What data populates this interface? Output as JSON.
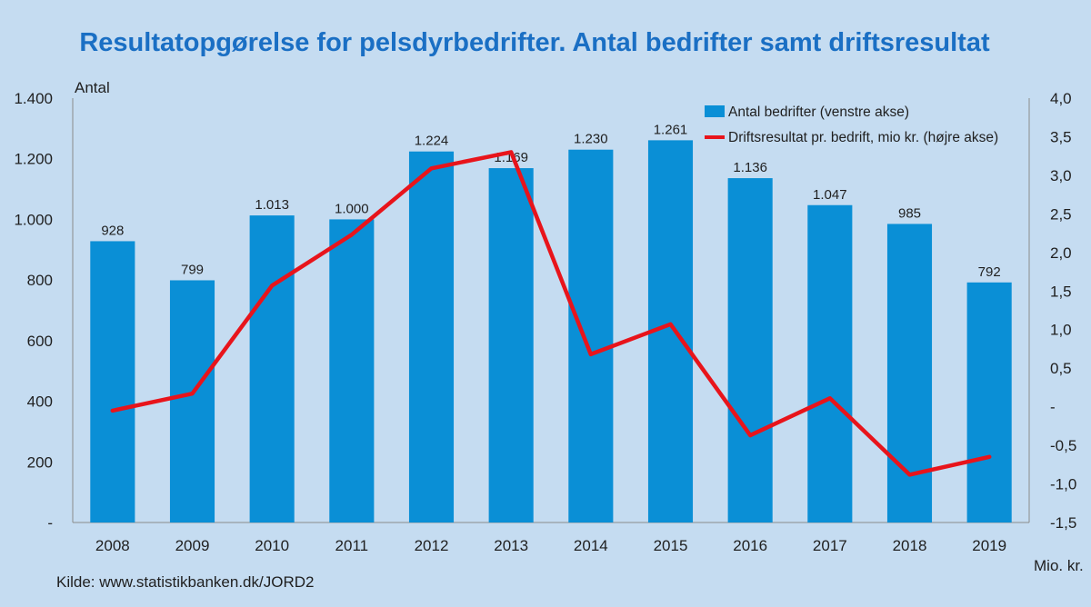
{
  "chart_data": {
    "type": "bar+line",
    "title": "Resultatopgørelse for pelsdyrbedrifter. Antal bedrifter samt driftsresultat",
    "categories": [
      "2008",
      "2009",
      "2010",
      "2011",
      "2012",
      "2013",
      "2014",
      "2015",
      "2016",
      "2017",
      "2018",
      "2019"
    ],
    "series": [
      {
        "name": "Antal bedrifter (venstre akse)",
        "type": "bar",
        "axis": "left",
        "color": "#0a8fd6",
        "values": [
          928,
          799,
          1013,
          1000,
          1224,
          1169,
          1230,
          1261,
          1136,
          1047,
          985,
          792
        ],
        "labels": [
          "928",
          "799",
          "1.013",
          "1.000",
          "1.224",
          "1.169",
          "1.230",
          "1.261",
          "1.136",
          "1.047",
          "985",
          "792"
        ]
      },
      {
        "name": "Driftsresultat pr. bedrift, mio kr. (højre akse)",
        "type": "line",
        "axis": "right",
        "color": "#e8141b",
        "values": [
          -0.05,
          0.17,
          1.57,
          2.23,
          3.09,
          3.3,
          0.68,
          1.07,
          -0.37,
          0.11,
          -0.88,
          -0.65
        ]
      }
    ],
    "y_left": {
      "label": "Antal",
      "min": 0,
      "max": 1400,
      "ticks": [
        0,
        200,
        400,
        600,
        800,
        1000,
        1200,
        1400
      ],
      "tick_labels": [
        "-",
        "200",
        "400",
        "600",
        "800",
        "1.000",
        "1.200",
        "1.400"
      ]
    },
    "y_right": {
      "label": "Mio. kr.",
      "min": -1.5,
      "max": 4.0,
      "ticks": [
        -1.5,
        -1.0,
        -0.5,
        0,
        0.5,
        1.0,
        1.5,
        2.0,
        2.5,
        3.0,
        3.5,
        4.0
      ],
      "tick_labels": [
        "-1,5",
        "-1,0",
        "-0,5",
        "-",
        "0,5",
        "1,0",
        "1,5",
        "2,0",
        "2,5",
        "3,0",
        "3,5",
        "4,0"
      ]
    },
    "grid": false,
    "legend_position": "top-right",
    "source": "Kilde: www.statistikbanken.dk/JORD2"
  },
  "colors": {
    "background": "#c5dcf1",
    "title": "#1a6fc4",
    "axis_line": "#8c8c8c"
  }
}
